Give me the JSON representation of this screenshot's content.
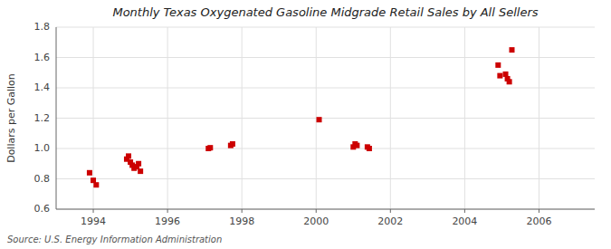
{
  "chart_data": {
    "type": "scatter",
    "title": "Monthly Texas Oxygenated Gasoline Midgrade Retail Sales by All Sellers",
    "ylabel": "Dollars per Gallon",
    "annotations": [
      "Source: U.S. Energy Information Administration"
    ],
    "color": "#cc0000",
    "marker": "square",
    "grid": true,
    "xlim": [
      1993.0,
      2007.5
    ],
    "ylim": [
      0.6,
      1.8
    ],
    "xticks": [
      1994,
      1996,
      1998,
      2000,
      2002,
      2004,
      2006
    ],
    "yticks": [
      0.6,
      0.8,
      {
        "value": 1.0,
        "label": "1.0"
      },
      1.2,
      1.4,
      1.6,
      1.8
    ],
    "x": [
      1993.9,
      1994.0,
      1994.08,
      1994.9,
      1994.95,
      1995.0,
      1995.05,
      1995.1,
      1995.17,
      1995.22,
      1995.27,
      1997.1,
      1997.15,
      1997.7,
      1997.75,
      2000.08,
      2001.0,
      2001.05,
      2001.1,
      2001.38,
      2001.43,
      2004.9,
      2004.95,
      2005.1,
      2005.15,
      2005.2,
      2005.27
    ],
    "values": [
      0.84,
      0.79,
      0.76,
      0.93,
      0.95,
      0.91,
      0.89,
      0.87,
      0.88,
      0.9,
      0.85,
      1.0,
      1.005,
      1.02,
      1.03,
      1.19,
      1.01,
      1.03,
      1.02,
      1.01,
      1.0,
      1.55,
      1.48,
      1.49,
      1.46,
      1.44,
      1.65
    ]
  }
}
